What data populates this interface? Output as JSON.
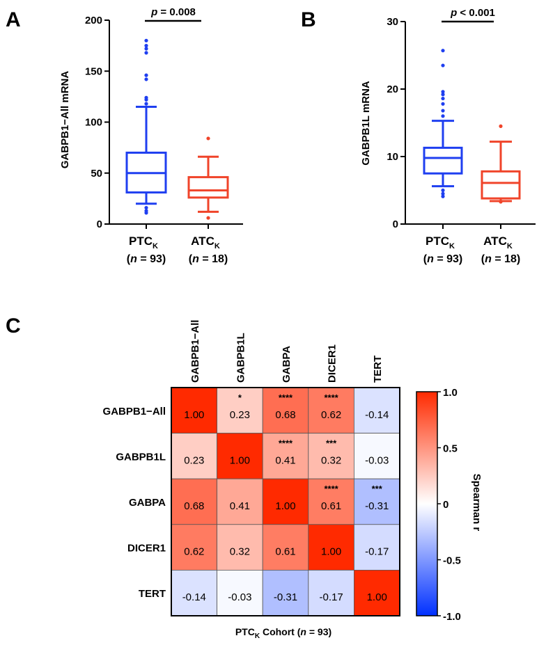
{
  "panels": {
    "a": {
      "letter": "A",
      "ylabel": "GABPB1−All mRNA",
      "pvalue_p": "p",
      "pvalue_rest": " = 0.008",
      "groups": [
        {
          "main": "PTC",
          "sub": "K",
          "n_open": "(",
          "n_italic": "n",
          "n_rest": " = 93)"
        },
        {
          "main": "ATC",
          "sub": "K",
          "n_open": "(",
          "n_italic": "n",
          "n_rest": " = 18)"
        }
      ]
    },
    "b": {
      "letter": "B",
      "ylabel": "GABPB1L mRNA",
      "pvalue_p": "p",
      "pvalue_rest": " < 0.001",
      "groups": [
        {
          "main": "PTC",
          "sub": "K",
          "n_open": "(",
          "n_italic": "n",
          "n_rest": " = 93)"
        },
        {
          "main": "ATC",
          "sub": "K",
          "n_open": "(",
          "n_italic": "n",
          "n_rest": " = 18)"
        }
      ]
    },
    "c": {
      "letter": "C",
      "xtitle_main": "PTC",
      "xtitle_sub": "K",
      "xtitle_mid": " Cohort (",
      "xtitle_italic": "n",
      "xtitle_end": " = 93)",
      "colorbar_title": "Spearman r"
    }
  },
  "colors": {
    "ptc": "#1f3ff0",
    "atc": "#f0442a",
    "pos_max": "#ff2a00",
    "neg_max": "#0030ff"
  },
  "chart_data": [
    {
      "type": "box",
      "panel": "A",
      "ylabel": "GABPB1−All mRNA",
      "ylim": [
        0,
        200
      ],
      "yticks": [
        0,
        50,
        100,
        150,
        200
      ],
      "categories": [
        "PTC",
        "ATC"
      ],
      "boxes": [
        {
          "whisker_low": 20,
          "q1": 31,
          "median": 50,
          "q3": 70,
          "whisker_high": 115,
          "outliers_high": [
            118,
            122,
            124,
            142,
            146,
            168,
            172,
            175,
            180
          ],
          "outliers_low": [
            11,
            13,
            16
          ]
        },
        {
          "whisker_low": 12,
          "q1": 26,
          "median": 33,
          "q3": 46,
          "whisker_high": 66,
          "outliers_high": [
            84
          ],
          "outliers_low": [
            6
          ]
        }
      ],
      "annotation": "p = 0.008"
    },
    {
      "type": "box",
      "panel": "B",
      "ylabel": "GABPB1L mRNA",
      "ylim": [
        0,
        30
      ],
      "yticks": [
        0,
        10,
        20,
        30
      ],
      "categories": [
        "PTC",
        "ATC"
      ],
      "boxes": [
        {
          "whisker_low": 5.6,
          "q1": 7.5,
          "median": 9.8,
          "q3": 11.3,
          "whisker_high": 15.3,
          "outliers_high": [
            16.0,
            16.8,
            17.8,
            18.6,
            19.2,
            19.6,
            23.5,
            25.7
          ],
          "outliers_low": [
            4.1,
            4.5,
            5.0
          ]
        },
        {
          "whisker_low": 3.4,
          "q1": 3.8,
          "median": 6.1,
          "q3": 7.8,
          "whisker_high": 12.2,
          "outliers_high": [
            14.5
          ],
          "outliers_low": [
            3.3
          ]
        }
      ],
      "annotation": "p < 0.001"
    },
    {
      "type": "heatmap",
      "panel": "C",
      "labels": [
        "GABPB1−All",
        "GABPB1L",
        "GABPA",
        "DICER1",
        "TERT"
      ],
      "values": [
        [
          1.0,
          0.23,
          0.68,
          0.62,
          -0.14
        ],
        [
          0.23,
          1.0,
          0.41,
          0.32,
          -0.03
        ],
        [
          0.68,
          0.41,
          1.0,
          0.61,
          -0.31
        ],
        [
          0.62,
          0.32,
          0.61,
          1.0,
          -0.17
        ],
        [
          -0.14,
          -0.03,
          -0.31,
          -0.17,
          1.0
        ]
      ],
      "display": [
        [
          "1.00",
          "0.23",
          "0.68",
          "0.62",
          "-0.14"
        ],
        [
          "0.23",
          "1.00",
          "0.41",
          "0.32",
          "-0.03"
        ],
        [
          "0.68",
          "0.41",
          "1.00",
          "0.61",
          "-0.31"
        ],
        [
          "0.62",
          "0.32",
          "0.61",
          "1.00",
          "-0.17"
        ],
        [
          "-0.14",
          "-0.03",
          "-0.31",
          "-0.17",
          "1.00"
        ]
      ],
      "stars": [
        [
          "",
          "*",
          "****",
          "****",
          ""
        ],
        [
          "",
          "",
          "****",
          "***",
          ""
        ],
        [
          "",
          "",
          "",
          "****",
          "***"
        ],
        [
          "",
          "",
          "",
          "",
          ""
        ],
        [
          "",
          "",
          "",
          "",
          ""
        ]
      ],
      "colorbar": {
        "min": -1.0,
        "max": 1.0,
        "ticks": [
          "1.0",
          "0.5",
          "0",
          "-0.5",
          "-1.0"
        ],
        "title": "Spearman r"
      }
    }
  ]
}
